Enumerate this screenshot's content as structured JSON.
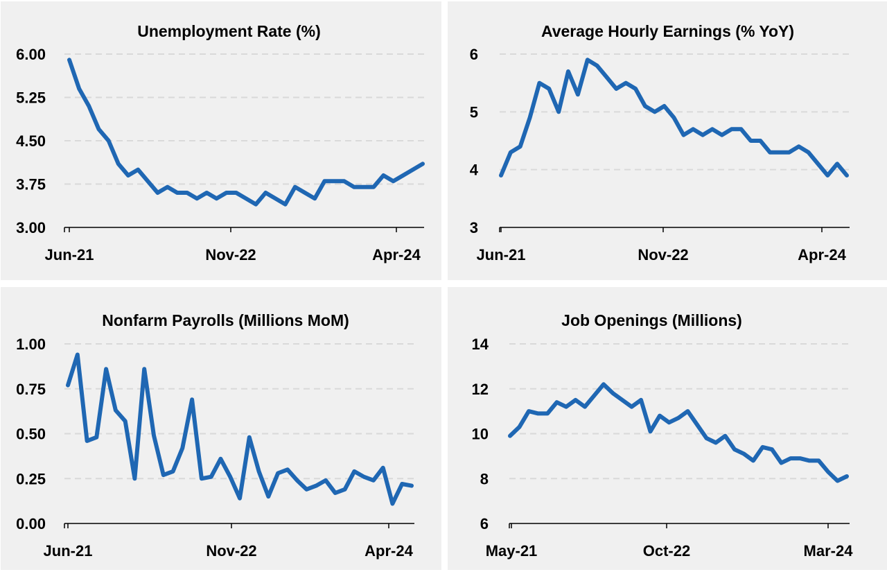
{
  "colors": {
    "line": "#1f67b3",
    "panel_bg": "#f0f0f0",
    "grid": "#d9d9d9"
  },
  "chart_data": [
    {
      "type": "line",
      "title": "Unemployment Rate (%)",
      "ylim": [
        3.0,
        6.0
      ],
      "yticks": [
        "3.00",
        "3.75",
        "4.50",
        "5.25",
        "6.00"
      ],
      "xticks": [
        "Jun-21",
        "Nov-22",
        "Apr-24"
      ],
      "x_range": [
        "Jun-21",
        "Jul-24"
      ],
      "grid": true,
      "values": [
        5.9,
        5.4,
        5.1,
        4.7,
        4.5,
        4.1,
        3.9,
        4.0,
        3.8,
        3.6,
        3.7,
        3.6,
        3.6,
        3.5,
        3.6,
        3.5,
        3.6,
        3.6,
        3.5,
        3.4,
        3.6,
        3.5,
        3.4,
        3.7,
        3.6,
        3.5,
        3.8,
        3.8,
        3.8,
        3.7,
        3.7,
        3.7,
        3.9,
        3.8,
        3.9,
        4.0,
        4.1
      ]
    },
    {
      "type": "line",
      "title": "Average Hourly Earnings (% YoY)",
      "ylim": [
        3,
        6
      ],
      "yticks": [
        "3",
        "4",
        "5",
        "6"
      ],
      "xticks": [
        "Jun-21",
        "Nov-22",
        "Apr-24"
      ],
      "x_range": [
        "Jun-21",
        "Jul-24"
      ],
      "grid": true,
      "values": [
        3.9,
        4.3,
        4.4,
        4.9,
        5.5,
        5.4,
        5.0,
        5.7,
        5.3,
        5.9,
        5.8,
        5.6,
        5.4,
        5.5,
        5.4,
        5.1,
        5.0,
        5.1,
        4.9,
        4.6,
        4.7,
        4.6,
        4.7,
        4.6,
        4.7,
        4.7,
        4.5,
        4.5,
        4.3,
        4.3,
        4.3,
        4.4,
        4.3,
        4.1,
        3.9,
        4.1,
        3.9
      ]
    },
    {
      "type": "line",
      "title": "Nonfarm Payrolls (Millions MoM)",
      "ylim": [
        0.0,
        1.0
      ],
      "yticks": [
        "0.00",
        "0.25",
        "0.50",
        "0.75",
        "1.00"
      ],
      "xticks": [
        "Jun-21",
        "Nov-22",
        "Apr-24"
      ],
      "x_range": [
        "Jun-21",
        "Jun-24"
      ],
      "grid": true,
      "values": [
        0.77,
        0.94,
        0.46,
        0.48,
        0.86,
        0.63,
        0.57,
        0.25,
        0.86,
        0.49,
        0.27,
        0.29,
        0.42,
        0.69,
        0.25,
        0.26,
        0.36,
        0.26,
        0.14,
        0.48,
        0.29,
        0.15,
        0.28,
        0.3,
        0.24,
        0.19,
        0.21,
        0.24,
        0.17,
        0.19,
        0.29,
        0.26,
        0.24,
        0.31,
        0.11,
        0.22,
        0.21
      ]
    },
    {
      "type": "line",
      "title": "Job Openings (Millions)",
      "ylim": [
        6,
        14
      ],
      "yticks": [
        "6",
        "8",
        "10",
        "12",
        "14"
      ],
      "xticks": [
        "May-21",
        "Oct-22",
        "Mar-24"
      ],
      "x_range": [
        "May-21",
        "Jun-24"
      ],
      "grid": true,
      "values": [
        9.9,
        10.3,
        11.0,
        10.9,
        10.9,
        11.4,
        11.2,
        11.5,
        11.2,
        11.7,
        12.2,
        11.8,
        11.5,
        11.2,
        11.5,
        10.1,
        10.8,
        10.5,
        10.7,
        11.0,
        10.4,
        9.8,
        9.6,
        9.9,
        9.3,
        9.1,
        8.8,
        9.4,
        9.3,
        8.7,
        8.9,
        8.9,
        8.8,
        8.8,
        8.3,
        7.9,
        8.1
      ]
    }
  ]
}
